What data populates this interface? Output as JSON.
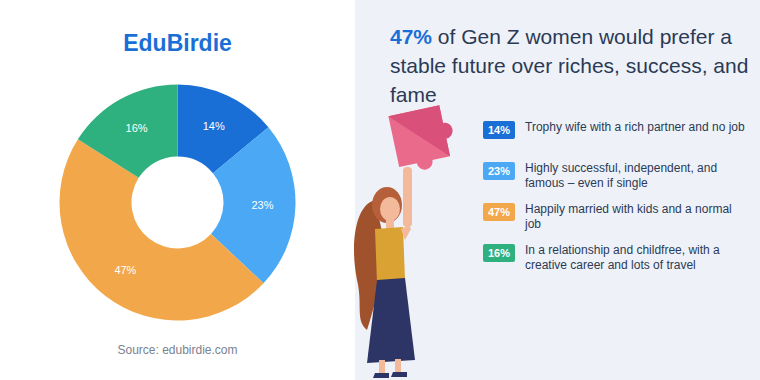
{
  "chart_data": {
    "type": "pie",
    "brand": "EduBirdie",
    "title": "47% of Gen Z women would prefer a stable future over riches, success, and fame",
    "source": "Source: edubirdie.com",
    "categories": [
      "Trophy wife with a rich partner and no job",
      "Highly successful, independent, and famous – even if single",
      "Happily married with kids and a normal job",
      "In a relationship and childfree, with a creative career and lots of travel"
    ],
    "values": [
      14,
      23,
      47,
      16
    ],
    "value_labels": [
      "14%",
      "23%",
      "47%",
      "16%"
    ],
    "colors": [
      "#1a6fd6",
      "#4aa8f5",
      "#f2a84a",
      "#2fb07f"
    ],
    "data_labels": true
  }
}
